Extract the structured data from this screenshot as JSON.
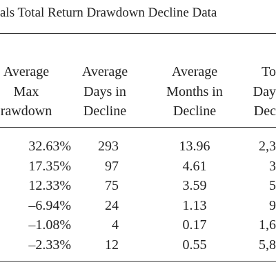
{
  "title": "als Total Return Drawdown Decline Data",
  "table": {
    "header": [
      [
        "Average",
        "Max",
        "rawdown"
      ],
      [
        "Average",
        "Days in",
        "Decline"
      ],
      [
        "Average",
        "Months in",
        "Decline"
      ],
      [
        "To",
        "Day",
        "Dec"
      ]
    ],
    "rows": [
      [
        "32.63%",
        "293",
        "13.96",
        "2,3"
      ],
      [
        "17.35%",
        "97",
        "4.61",
        "3"
      ],
      [
        "12.33%",
        "75",
        "3.59",
        "5"
      ],
      [
        "–6.94%",
        "24",
        "1.13",
        "9"
      ],
      [
        "–1.08%",
        "4",
        "0.17",
        "1,6"
      ],
      [
        "–2.33%",
        "12",
        "0.55",
        "5,8"
      ]
    ]
  }
}
